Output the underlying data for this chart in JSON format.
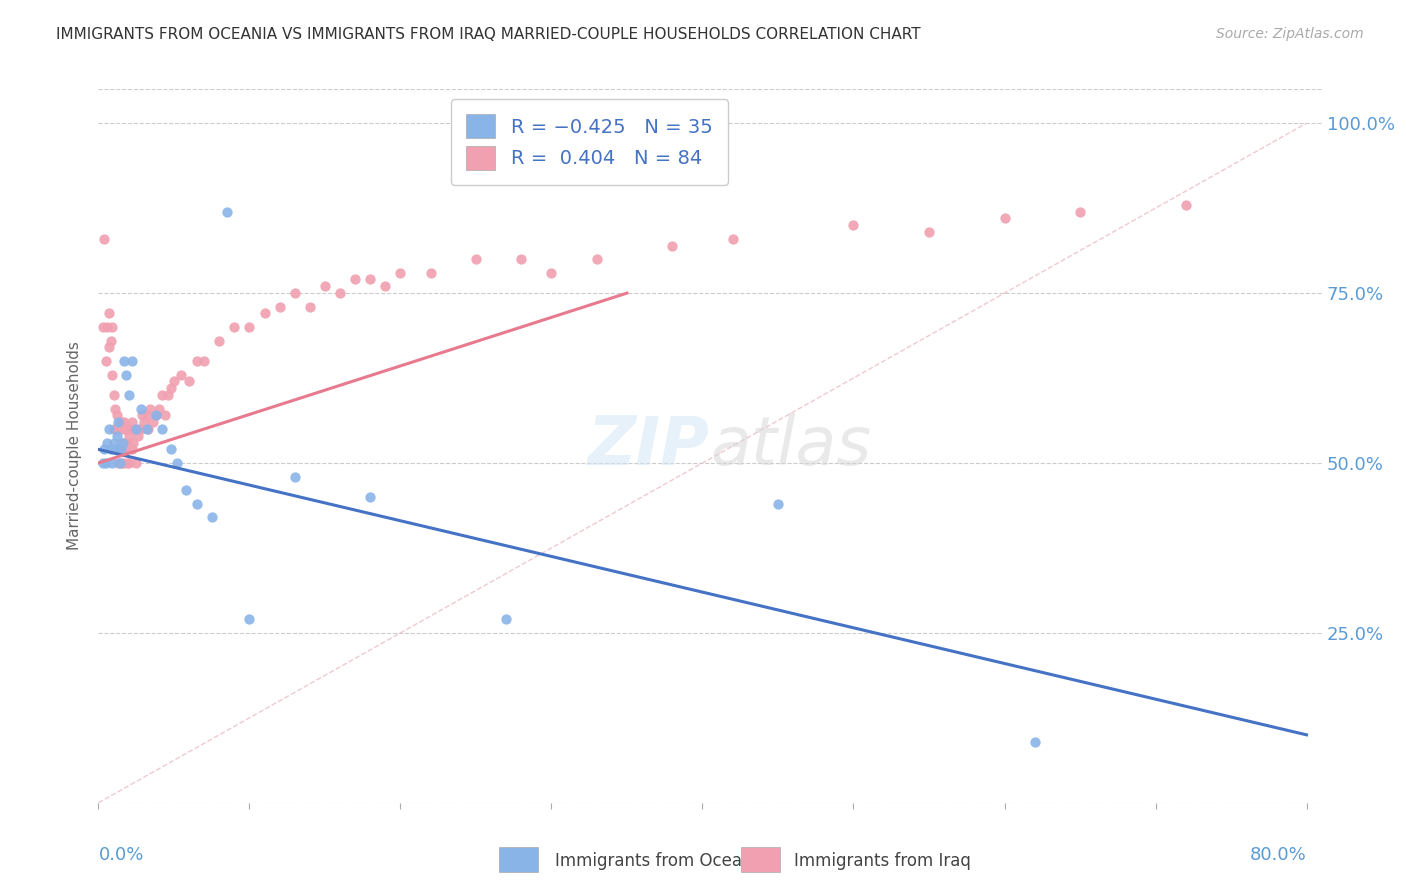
{
  "title": "IMMIGRANTS FROM OCEANIA VS IMMIGRANTS FROM IRAQ MARRIED-COUPLE HOUSEHOLDS CORRELATION CHART",
  "source": "Source: ZipAtlas.com",
  "ylabel": "Married-couple Households",
  "oceania_color": "#89b4e8",
  "iraq_color": "#f0a0b0",
  "oceania_line_color": "#4472c4",
  "iraq_line_color": "#e87a8f",
  "diagonal_color": "#e8b4bc",
  "background_color": "#ffffff",
  "title_color": "#333333",
  "axis_label_color": "#5b9bd5",
  "xmin": 0.0,
  "xmax": 0.8,
  "ymin": 0.0,
  "ymax": 1.05,
  "yticks": [
    0.25,
    0.5,
    0.75,
    1.0
  ],
  "ytick_labels": [
    "25.0%",
    "50.0%",
    "75.0%",
    "100.0%"
  ],
  "oceania_x": [
    0.003,
    0.004,
    0.005,
    0.006,
    0.007,
    0.008,
    0.009,
    0.01,
    0.011,
    0.012,
    0.013,
    0.014,
    0.015,
    0.016,
    0.017,
    0.018,
    0.02,
    0.022,
    0.025,
    0.028,
    0.032,
    0.038,
    0.042,
    0.048,
    0.052,
    0.058,
    0.065,
    0.075,
    0.085,
    0.1,
    0.13,
    0.18,
    0.27,
    0.45,
    0.62
  ],
  "oceania_y": [
    0.5,
    0.52,
    0.5,
    0.53,
    0.55,
    0.52,
    0.5,
    0.53,
    0.52,
    0.54,
    0.56,
    0.5,
    0.52,
    0.53,
    0.65,
    0.63,
    0.6,
    0.65,
    0.55,
    0.58,
    0.55,
    0.57,
    0.55,
    0.52,
    0.5,
    0.46,
    0.44,
    0.42,
    0.87,
    0.27,
    0.48,
    0.45,
    0.27,
    0.44,
    0.09
  ],
  "iraq_x": [
    0.003,
    0.004,
    0.005,
    0.006,
    0.007,
    0.007,
    0.008,
    0.009,
    0.009,
    0.01,
    0.01,
    0.011,
    0.011,
    0.012,
    0.012,
    0.013,
    0.013,
    0.014,
    0.014,
    0.015,
    0.015,
    0.015,
    0.016,
    0.016,
    0.016,
    0.017,
    0.017,
    0.018,
    0.018,
    0.019,
    0.019,
    0.02,
    0.02,
    0.021,
    0.022,
    0.022,
    0.023,
    0.024,
    0.025,
    0.026,
    0.027,
    0.028,
    0.029,
    0.03,
    0.032,
    0.033,
    0.034,
    0.036,
    0.038,
    0.04,
    0.042,
    0.044,
    0.046,
    0.048,
    0.05,
    0.055,
    0.06,
    0.065,
    0.07,
    0.08,
    0.09,
    0.1,
    0.11,
    0.12,
    0.13,
    0.14,
    0.15,
    0.16,
    0.17,
    0.18,
    0.19,
    0.2,
    0.22,
    0.25,
    0.28,
    0.3,
    0.33,
    0.38,
    0.42,
    0.5,
    0.55,
    0.6,
    0.65,
    0.72
  ],
  "iraq_y": [
    0.7,
    0.83,
    0.65,
    0.7,
    0.67,
    0.72,
    0.68,
    0.63,
    0.7,
    0.55,
    0.6,
    0.55,
    0.58,
    0.52,
    0.57,
    0.5,
    0.55,
    0.52,
    0.56,
    0.5,
    0.53,
    0.56,
    0.5,
    0.52,
    0.55,
    0.53,
    0.56,
    0.52,
    0.55,
    0.5,
    0.53,
    0.5,
    0.54,
    0.55,
    0.52,
    0.56,
    0.53,
    0.55,
    0.5,
    0.54,
    0.55,
    0.55,
    0.57,
    0.56,
    0.57,
    0.55,
    0.58,
    0.56,
    0.57,
    0.58,
    0.6,
    0.57,
    0.6,
    0.61,
    0.62,
    0.63,
    0.62,
    0.65,
    0.65,
    0.68,
    0.7,
    0.7,
    0.72,
    0.73,
    0.75,
    0.73,
    0.76,
    0.75,
    0.77,
    0.77,
    0.76,
    0.78,
    0.78,
    0.8,
    0.8,
    0.78,
    0.8,
    0.82,
    0.83,
    0.85,
    0.84,
    0.86,
    0.87,
    0.88
  ],
  "iraq_line_xend": 0.35,
  "oceania_line_ystart": 0.52,
  "oceania_line_yend": 0.1
}
